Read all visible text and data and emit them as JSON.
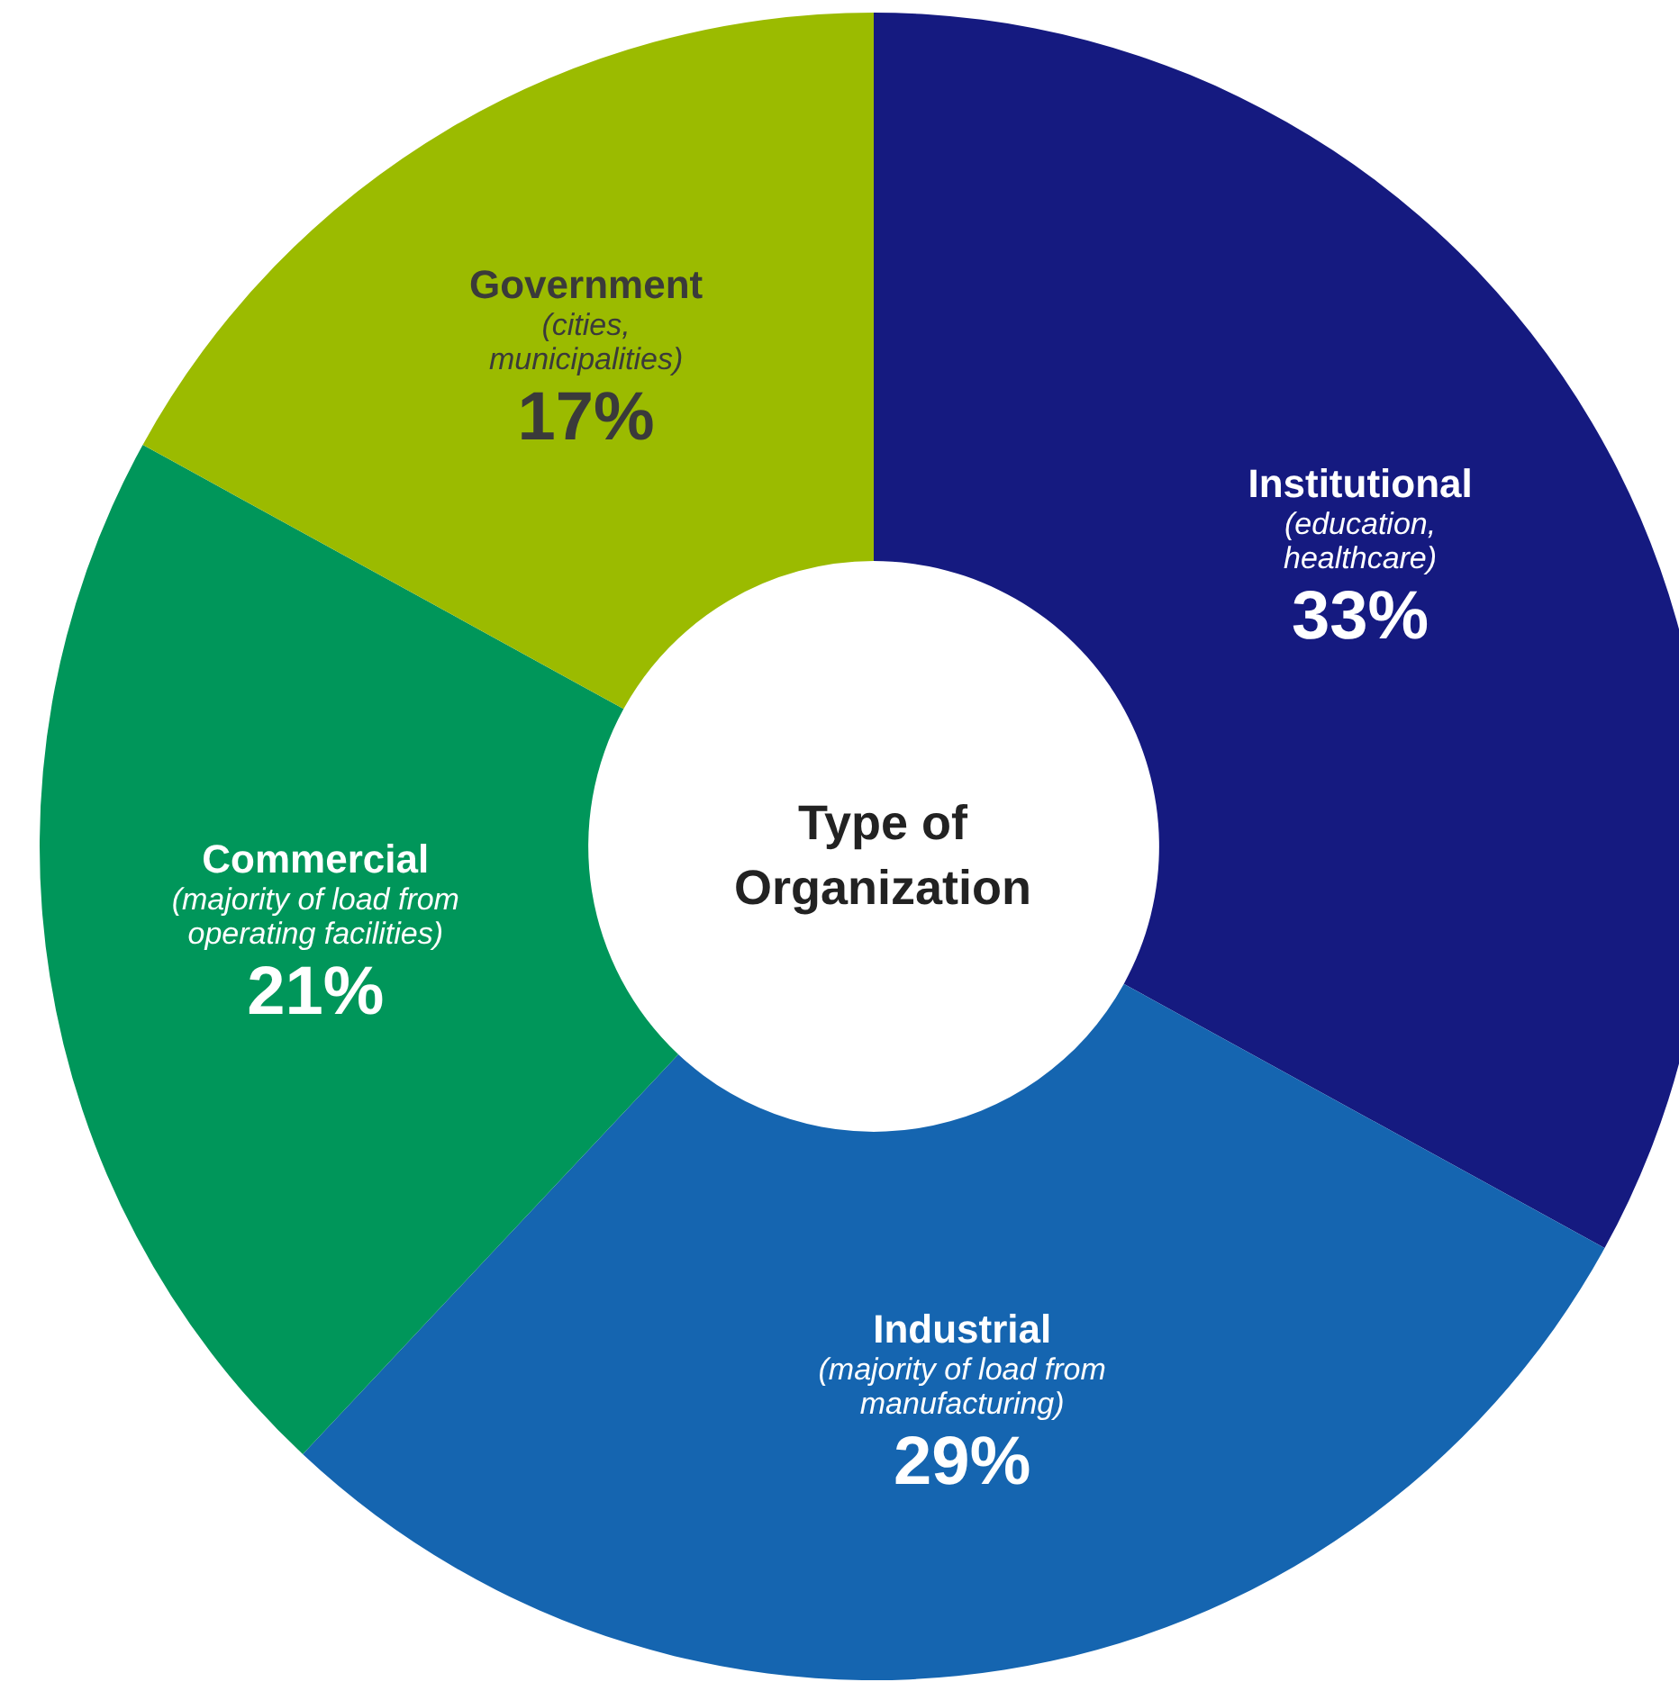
{
  "chart_data": {
    "type": "donut",
    "title": "Type of\nOrganization",
    "categories": [
      "Institutional\n(education,\nhealthcare)",
      "Industrial\n(majority of load from\nmanufacturing)",
      "Commercial\n(majority of load from\noperating facilities)",
      "Government\n(cities,\nmunicipalities)"
    ],
    "values": [
      33,
      29,
      21,
      17
    ],
    "value_labels": [
      "33%",
      "29%",
      "21%",
      "17%"
    ],
    "colors": [
      "#151a80",
      "#1565b0",
      "#00965a",
      "#9bbb00"
    ],
    "legend": false
  }
}
